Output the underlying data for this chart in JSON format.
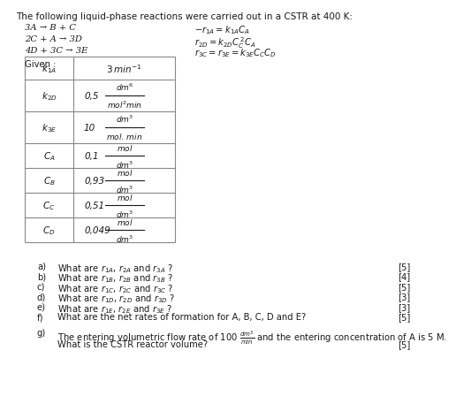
{
  "title": "The following liquid-phase reactions were carried out in a CSTR at 400 K:",
  "rxn_left": [
    "3A → B + C",
    "2C + A → 3D",
    "4D + 3C → 3E"
  ],
  "rxn_right_latex": [
    "$-r_{1A} = k_{1A}C_A$",
    "$r_{2D} = k_{2D}C_C^{\\,2}C_A$",
    "$r_{3C} = r_{3E} = k_{3E}C_CC_D$"
  ],
  "given": "Given :",
  "table_col1": [
    "$k_{1A}$",
    "$k_{2D}$",
    "$k_{3E}$",
    "$C_A$",
    "$C_B$",
    "$C_C$",
    "$C_D$"
  ],
  "table_num": [
    "3",
    "0,5",
    "10",
    "0,1",
    "0,93",
    "0,51",
    "0,049"
  ],
  "table_unit_num": [
    "$min^{-1}$",
    "$dm^6$",
    "$dm^3$",
    "$mol$",
    "$mol$",
    "$mol$",
    "$mol$"
  ],
  "table_unit_den": [
    "",
    "$mol^2min$",
    "$mol.\\,min$",
    "$dm^3$",
    "$dm^3$",
    "$dm^3$",
    "$dm^3$"
  ],
  "table_has_frac": [
    false,
    true,
    true,
    true,
    true,
    true,
    true
  ],
  "questions_letter": [
    "a)",
    "b)",
    "c)",
    "d)",
    "e)",
    "f)"
  ],
  "questions_text": [
    "What are $r_{1A}$, $r_{2A}$ and $r_{3A}$ ?",
    "What are $r_{1B}$, $r_{2B}$ and $r_{3B}$ ?",
    "What are $r_{1C}$, $r_{2C}$ and $r_{3C}$ ?",
    "What are $r_{1D}$, $r_{2D}$ and $r_{3D}$ ?",
    "What are $r_{1E}$, $r_{2E}$ and $r_{3E}$ ?",
    "What are the net rates of formation for A, B, C, D and E?"
  ],
  "questions_mark": [
    "[5]",
    "[4]",
    "[5]",
    "[3]",
    "[3]",
    "[5]"
  ],
  "g_line1": "The entering volumetric flow rate of 100 $\\frac{dm^3}{min}$ and the entering concentration of A is 5 M.",
  "g_line2": "What is the CSTR reactor volume?",
  "g_mark": "[5]",
  "bg_color": "#ffffff",
  "text_color": "#1a1a1a",
  "border_color": "#888888",
  "title_fs": 7.5,
  "text_fs": 7.2,
  "table_fs": 7.5,
  "small_fs": 6.5
}
